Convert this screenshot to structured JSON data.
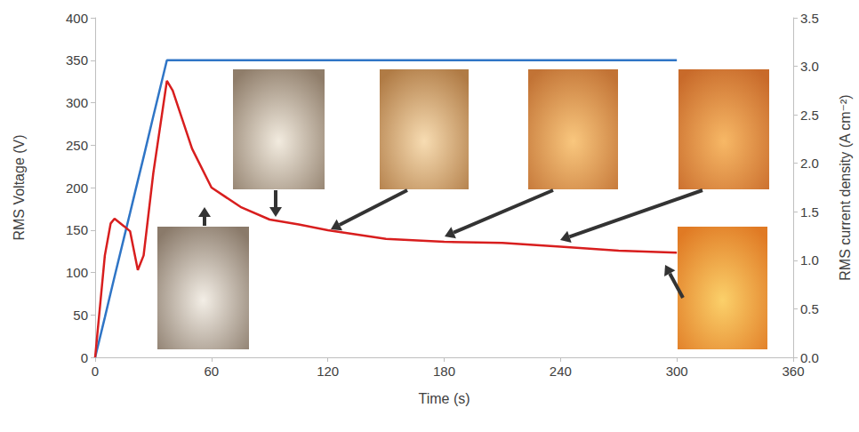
{
  "chart_data": {
    "type": "line",
    "xlabel": "Time (s)",
    "ylabel": "RMS Voltage (V)",
    "y2label": "RMS current density (A cm⁻²)",
    "x": [
      0,
      5,
      8,
      10,
      15,
      18,
      22,
      25,
      30,
      37,
      40,
      45,
      50,
      60,
      75,
      90,
      105,
      120,
      150,
      180,
      210,
      240,
      270,
      300
    ],
    "xlim": [
      0,
      360
    ],
    "xticks": [
      0,
      60,
      120,
      180,
      240,
      300,
      360
    ],
    "ylim": [
      0,
      400
    ],
    "yticks": [
      0,
      50,
      100,
      150,
      200,
      250,
      300,
      350,
      400
    ],
    "y2lim": [
      0,
      3.5
    ],
    "y2ticks": [
      {
        "value": 0,
        "label": "0.0"
      },
      0.5,
      {
        "value": 1,
        "label": "1.0"
      },
      1.5,
      {
        "value": 2,
        "label": "2.0"
      },
      2.5,
      {
        "value": 3,
        "label": "3.0"
      },
      3.5
    ],
    "grid": false,
    "series": [
      {
        "color": "#2f75c6",
        "axis": "y",
        "line_style": "solid",
        "values": [
          0,
          47,
          76,
          95,
          142,
          170,
          208,
          236,
          284,
          350,
          350,
          350,
          350,
          350,
          350,
          350,
          350,
          350,
          350,
          350,
          350,
          350,
          350,
          350
        ]
      },
      {
        "color": "#d81e1e",
        "axis": "y2",
        "line_style": "solid",
        "values": [
          0,
          1.05,
          1.38,
          1.43,
          1.35,
          1.3,
          0.9,
          1.05,
          1.9,
          2.85,
          2.75,
          2.45,
          2.15,
          1.75,
          1.55,
          1.42,
          1.37,
          1.31,
          1.22,
          1.19,
          1.18,
          1.14,
          1.1,
          1.08
        ]
      }
    ]
  }
}
